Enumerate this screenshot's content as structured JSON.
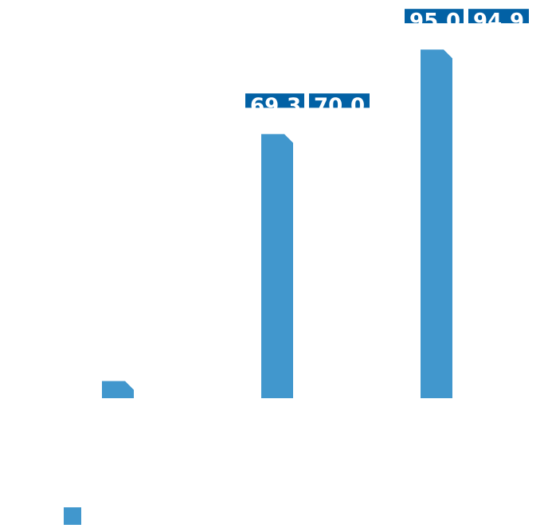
{
  "chart_data": {
    "type": "bar",
    "title": "",
    "xlabel": "",
    "ylabel": "",
    "categories": [
      "",
      "",
      ""
    ],
    "series": [
      {
        "name": "",
        "color": "#4197cd",
        "values": [
          3.9,
          60.3,
          79.6
        ]
      }
    ],
    "data_labels": [
      [
        "",
        ""
      ],
      [
        "69.3",
        "70.0"
      ],
      [
        "95.0",
        "94.9"
      ]
    ],
    "label_color": "#0261a5",
    "ylim": [
      0,
      80
    ],
    "grid": false,
    "legend": "bottom-left"
  }
}
